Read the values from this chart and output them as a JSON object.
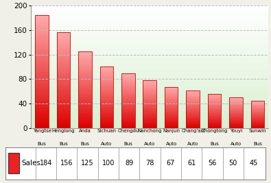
{
  "categories": [
    [
      "Yangtse",
      "Bus"
    ],
    [
      "Henglong",
      "Bus"
    ],
    [
      "Anda",
      "Bus"
    ],
    [
      "Sichuan",
      "Auto"
    ],
    [
      "Chengdu",
      "Bus"
    ],
    [
      "Nanchong",
      "Auto"
    ],
    [
      "Nanjun",
      "Auto"
    ],
    [
      "Chang'an",
      "Auto"
    ],
    [
      "Zhongtong",
      "Bus"
    ],
    [
      "Youyi",
      "Auto"
    ],
    [
      "Sunwin",
      "Bus"
    ]
  ],
  "values": [
    184,
    156,
    125,
    100,
    89,
    78,
    67,
    61,
    56,
    50,
    45
  ],
  "bar_color_top": "#ffaaaa",
  "bar_color_bottom": "#dd0000",
  "background_color": "#f0f0e8",
  "plot_bg_color_top": "#ffffff",
  "plot_bg_color_bottom": "#d8f0d0",
  "grid_color": "#bbbbbb",
  "border_color": "#999999",
  "ylim": [
    0,
    200
  ],
  "yticks": [
    0,
    40,
    80,
    120,
    160,
    200
  ],
  "legend_label": "Sales",
  "legend_color": "#ee2222",
  "legend_border": "#888888"
}
